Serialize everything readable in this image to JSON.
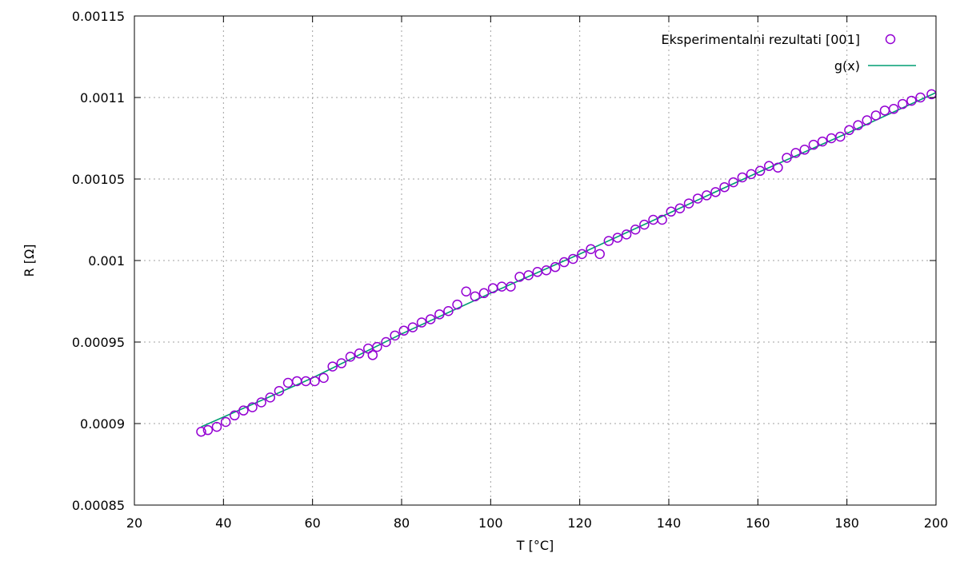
{
  "chart_data": {
    "type": "scatter",
    "xlabel": "T [°C]",
    "ylabel": "R [Ω]",
    "xlim": [
      20,
      200
    ],
    "ylim": [
      0.00085,
      0.00115
    ],
    "x_ticks": [
      "20",
      "40",
      "60",
      "80",
      "100",
      "120",
      "140",
      "160",
      "180",
      "200"
    ],
    "y_ticks": [
      "0.00085",
      "0.0009",
      "0.00095",
      "0.001",
      "0.00105",
      "0.0011",
      "0.00115"
    ],
    "grid": true,
    "legend_position": "top-right",
    "series": [
      {
        "name": "Eksperimentalni rezultati [001]",
        "kind": "points",
        "marker": "open-circle",
        "color": "#9400d3",
        "points": [
          [
            35.0,
            0.000895
          ],
          [
            36.5,
            0.000896
          ],
          [
            38.5,
            0.000898
          ],
          [
            40.5,
            0.000901
          ],
          [
            42.5,
            0.000905
          ],
          [
            44.5,
            0.000908
          ],
          [
            46.5,
            0.00091
          ],
          [
            48.5,
            0.000913
          ],
          [
            50.5,
            0.000916
          ],
          [
            52.5,
            0.00092
          ],
          [
            54.5,
            0.000925
          ],
          [
            56.5,
            0.000926
          ],
          [
            58.5,
            0.000926
          ],
          [
            60.5,
            0.000926
          ],
          [
            62.5,
            0.000928
          ],
          [
            64.5,
            0.000935
          ],
          [
            66.5,
            0.000937
          ],
          [
            68.5,
            0.000941
          ],
          [
            70.5,
            0.000943
          ],
          [
            72.5,
            0.000946
          ],
          [
            73.5,
            0.000942
          ],
          [
            74.5,
            0.000947
          ],
          [
            76.5,
            0.00095
          ],
          [
            78.5,
            0.000954
          ],
          [
            80.5,
            0.000957
          ],
          [
            82.5,
            0.000959
          ],
          [
            84.5,
            0.000962
          ],
          [
            86.5,
            0.000964
          ],
          [
            88.5,
            0.000967
          ],
          [
            90.5,
            0.000969
          ],
          [
            92.5,
            0.000973
          ],
          [
            94.5,
            0.000981
          ],
          [
            96.5,
            0.000978
          ],
          [
            98.5,
            0.00098
          ],
          [
            100.5,
            0.000983
          ],
          [
            102.5,
            0.000984
          ],
          [
            104.5,
            0.000984
          ],
          [
            106.5,
            0.00099
          ],
          [
            108.5,
            0.000991
          ],
          [
            110.5,
            0.000993
          ],
          [
            112.5,
            0.000994
          ],
          [
            114.5,
            0.000996
          ],
          [
            116.5,
            0.000999
          ],
          [
            118.5,
            0.001001
          ],
          [
            120.5,
            0.001004
          ],
          [
            122.5,
            0.001007
          ],
          [
            124.5,
            0.001004
          ],
          [
            126.5,
            0.001012
          ],
          [
            128.5,
            0.001014
          ],
          [
            130.5,
            0.001016
          ],
          [
            132.5,
            0.001019
          ],
          [
            134.5,
            0.001022
          ],
          [
            136.5,
            0.001025
          ],
          [
            138.5,
            0.001025
          ],
          [
            140.5,
            0.00103
          ],
          [
            142.5,
            0.001032
          ],
          [
            144.5,
            0.001035
          ],
          [
            146.5,
            0.001038
          ],
          [
            148.5,
            0.00104
          ],
          [
            150.5,
            0.001042
          ],
          [
            152.5,
            0.001045
          ],
          [
            154.5,
            0.001048
          ],
          [
            156.5,
            0.001051
          ],
          [
            158.5,
            0.001053
          ],
          [
            160.5,
            0.001055
          ],
          [
            162.5,
            0.001058
          ],
          [
            164.5,
            0.001057
          ],
          [
            166.5,
            0.001063
          ],
          [
            168.5,
            0.001066
          ],
          [
            170.5,
            0.001068
          ],
          [
            172.5,
            0.001071
          ],
          [
            174.5,
            0.001073
          ],
          [
            176.5,
            0.001075
          ],
          [
            178.5,
            0.001076
          ],
          [
            180.5,
            0.00108
          ],
          [
            182.5,
            0.001083
          ],
          [
            184.5,
            0.001086
          ],
          [
            186.5,
            0.001089
          ],
          [
            188.5,
            0.001092
          ],
          [
            190.5,
            0.001093
          ],
          [
            192.5,
            0.001096
          ],
          [
            194.5,
            0.001098
          ],
          [
            196.5,
            0.0011
          ],
          [
            199.0,
            0.001102
          ]
        ]
      },
      {
        "name": "g(x)",
        "kind": "line",
        "color": "#009e73",
        "points": [
          [
            35.0,
            0.000898
          ],
          [
            60.0,
            0.000928
          ],
          [
            80.0,
            0.000955
          ],
          [
            100.0,
            0.00098
          ],
          [
            120.0,
            0.001004
          ],
          [
            140.0,
            0.001029
          ],
          [
            160.0,
            0.001054
          ],
          [
            180.0,
            0.001078
          ],
          [
            200.0,
            0.001103
          ]
        ]
      }
    ]
  }
}
